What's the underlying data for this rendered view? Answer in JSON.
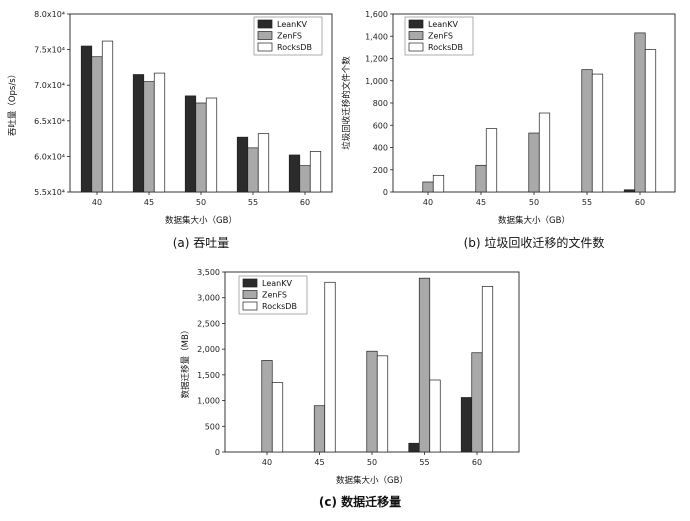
{
  "legend": [
    "LeanKV",
    "ZenFS",
    "RocksDB"
  ],
  "colors": {
    "LeanKV": "#2b2b2b",
    "ZenFS": "#a9a9a9",
    "RocksDB": "#ffffff"
  },
  "chart_data": [
    {
      "id": "a",
      "type": "bar",
      "caption": "(a)  吞吐量",
      "xlabel": "数据集大小（GB）",
      "ylabel": "吞吐量（Ops/s）",
      "categories": [
        "40",
        "45",
        "50",
        "55",
        "60"
      ],
      "ylim": [
        55000,
        80000
      ],
      "yticks": [
        55000,
        60000,
        65000,
        70000,
        75000,
        80000
      ],
      "ytick_labels": [
        "5.5x10⁴",
        "6.0x10⁴",
        "6.5x10⁴",
        "7.0x10⁴",
        "7.5x10⁴",
        "8.0x10⁴"
      ],
      "legend_position": "top-right",
      "series": [
        {
          "name": "LeanKV",
          "values": [
            75500,
            71500,
            68500,
            62700,
            60200
          ]
        },
        {
          "name": "ZenFS",
          "values": [
            74000,
            70500,
            67500,
            61200,
            58700
          ]
        },
        {
          "name": "RocksDB",
          "values": [
            76200,
            71700,
            68200,
            63200,
            60700
          ]
        }
      ]
    },
    {
      "id": "b",
      "type": "bar",
      "caption": "(b)  垃圾回收迁移的文件数",
      "xlabel": "数据集大小（GB）",
      "ylabel": "垃圾回收迁移的文件个数",
      "categories": [
        "40",
        "45",
        "50",
        "55",
        "60"
      ],
      "ylim": [
        0,
        1600
      ],
      "yticks": [
        0,
        200,
        400,
        600,
        800,
        1000,
        1200,
        1400,
        1600
      ],
      "ytick_labels": [
        "0",
        "200",
        "400",
        "600",
        "800",
        "1,000",
        "1,200",
        "1,400",
        "1,600"
      ],
      "legend_position": "top-left",
      "series": [
        {
          "name": "LeanKV",
          "values": [
            0,
            0,
            0,
            0,
            20
          ]
        },
        {
          "name": "ZenFS",
          "values": [
            90,
            240,
            530,
            1100,
            1430
          ]
        },
        {
          "name": "RocksDB",
          "values": [
            150,
            570,
            710,
            1060,
            1280
          ]
        }
      ]
    },
    {
      "id": "c",
      "type": "bar",
      "caption": "(c)  数据迁移量",
      "xlabel": "数据集大小（GB）",
      "ylabel": "数据迁移量（MB）",
      "categories": [
        "40",
        "45",
        "50",
        "55",
        "60"
      ],
      "ylim": [
        0,
        3500
      ],
      "yticks": [
        0,
        500,
        1000,
        1500,
        2000,
        2500,
        3000,
        3500
      ],
      "ytick_labels": [
        "0",
        "500",
        "1,000",
        "1,500",
        "2,000",
        "2,500",
        "3,000",
        "3,500"
      ],
      "legend_position": "top-left",
      "series": [
        {
          "name": "LeanKV",
          "values": [
            0,
            0,
            0,
            170,
            1060
          ]
        },
        {
          "name": "ZenFS",
          "values": [
            1780,
            900,
            1960,
            3380,
            1930
          ]
        },
        {
          "name": "RocksDB",
          "values": [
            1350,
            3300,
            1870,
            1400,
            3220
          ]
        }
      ]
    }
  ]
}
